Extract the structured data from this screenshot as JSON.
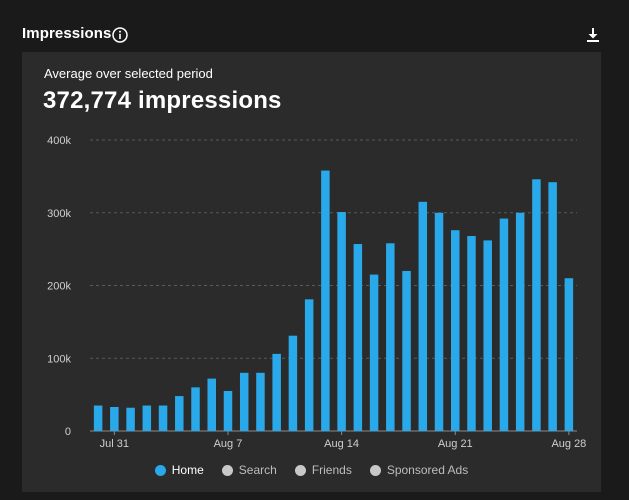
{
  "header": {
    "title": "Impressions",
    "info_icon": "info-icon",
    "download_icon": "download-icon"
  },
  "summary": {
    "subtitle": "Average over selected period",
    "value": "372,774 impressions"
  },
  "colors": {
    "bar": "#29a8ea",
    "grid": "#5a5a5a",
    "legend_inactive": "#c8c8c8",
    "legend_home": "#29a8ea"
  },
  "legend": {
    "items": [
      {
        "label": "Home",
        "active": true
      },
      {
        "label": "Search",
        "active": false
      },
      {
        "label": "Friends",
        "active": false
      },
      {
        "label": "Sponsored Ads",
        "active": false
      }
    ]
  },
  "chart_data": {
    "type": "bar",
    "title": "Impressions",
    "xlabel": "",
    "ylabel": "",
    "ylim": [
      0,
      400000
    ],
    "y_ticks": [
      0,
      100000,
      200000,
      300000,
      400000
    ],
    "y_tick_labels": [
      "0",
      "100k",
      "200k",
      "300k",
      "400k"
    ],
    "x_tick_labels": [
      {
        "label": "Jul 31",
        "index": 1
      },
      {
        "label": "Aug 7",
        "index": 8
      },
      {
        "label": "Aug 14",
        "index": 15
      },
      {
        "label": "Aug 21",
        "index": 22
      },
      {
        "label": "Aug 28",
        "index": 29
      }
    ],
    "categories": [
      "Jul 30",
      "Jul 31",
      "Aug 1",
      "Aug 2",
      "Aug 3",
      "Aug 4",
      "Aug 5",
      "Aug 6",
      "Aug 7",
      "Aug 8",
      "Aug 9",
      "Aug 10",
      "Aug 11",
      "Aug 12",
      "Aug 13",
      "Aug 14",
      "Aug 15",
      "Aug 16",
      "Aug 17",
      "Aug 18",
      "Aug 19",
      "Aug 20",
      "Aug 21",
      "Aug 22",
      "Aug 23",
      "Aug 24",
      "Aug 25",
      "Aug 26",
      "Aug 27",
      "Aug 28"
    ],
    "series": [
      {
        "name": "Home",
        "values": [
          35000,
          33000,
          32000,
          35000,
          35000,
          48000,
          60000,
          72000,
          55000,
          80000,
          80000,
          106000,
          131000,
          181000,
          358000,
          301000,
          257000,
          215000,
          258000,
          220000,
          315000,
          300000,
          276000,
          268000,
          262000,
          292000,
          300000,
          346000,
          342000,
          210000
        ]
      }
    ],
    "grid": true,
    "legend_position": "bottom"
  }
}
